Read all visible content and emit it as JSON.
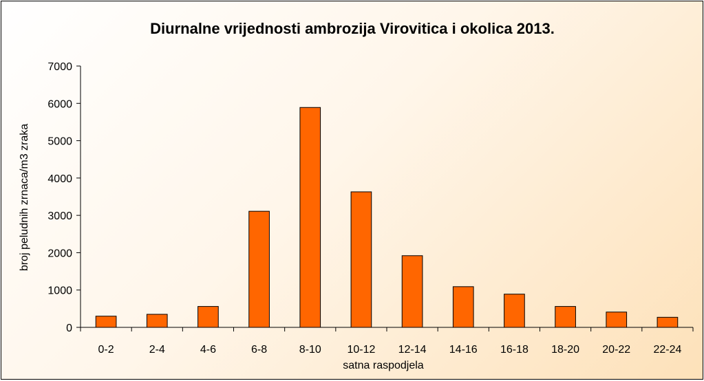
{
  "chart_data": {
    "type": "bar",
    "title": "Diurnalne vrijednosti ambrozija Virovitica i okolica 2013.",
    "xlabel": "satna raspodjela",
    "ylabel": "broj peludnih zrnaca/m3 zraka",
    "categories": [
      "0-2",
      "2-4",
      "4-6",
      "6-8",
      "8-10",
      "10-12",
      "12-14",
      "14-16",
      "16-18",
      "18-20",
      "20-22",
      "22-24"
    ],
    "values": [
      300,
      350,
      560,
      3110,
      5890,
      3630,
      1920,
      1090,
      890,
      560,
      410,
      270
    ],
    "ylim": [
      0,
      7000
    ],
    "yticks": [
      0,
      1000,
      2000,
      3000,
      4000,
      5000,
      6000,
      7000
    ],
    "ytick_labels": [
      "0",
      "1000",
      "2000",
      "3000",
      "4000",
      "5000",
      "6000",
      "7000"
    ],
    "bar_color": "#FF6600",
    "bar_border_color": "#000000",
    "background_color": "#FDE1B9",
    "grid": false,
    "legend": false
  }
}
